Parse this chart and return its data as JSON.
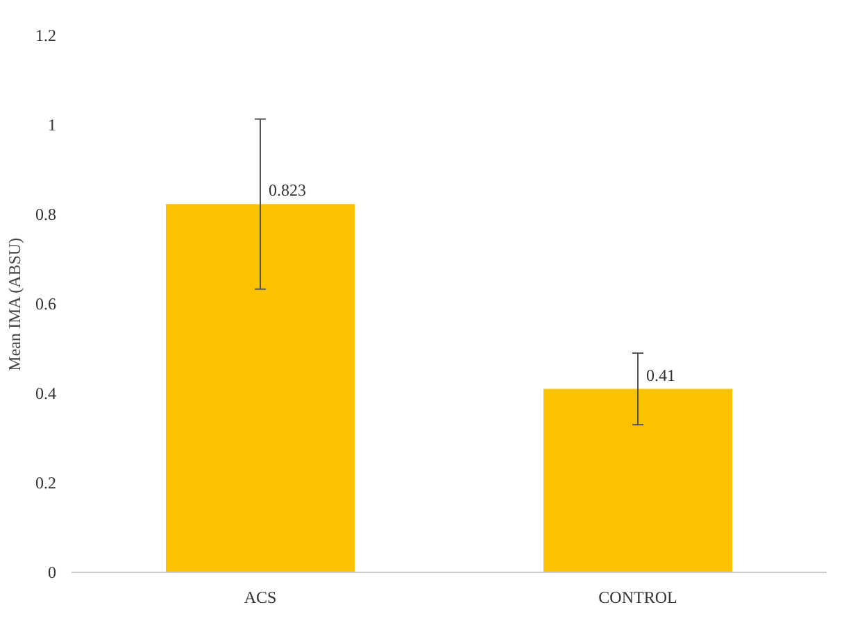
{
  "chart_data": {
    "type": "bar",
    "ylabel": "Mean IMA (ABSU)",
    "categories": [
      "ACS",
      "CONTROL"
    ],
    "values": [
      0.823,
      0.41
    ],
    "errors": [
      0.19,
      0.08
    ],
    "color": "#fbc202",
    "data_labels": true,
    "ylim": [
      0,
      1.2
    ],
    "yticks": [
      0,
      {
        "value": 0.2,
        "label": "0.2"
      },
      {
        "value": 0.4,
        "label": "0.4"
      },
      {
        "value": 0.6,
        "label": "0.6"
      },
      {
        "value": 0.8,
        "label": "0.8"
      },
      1,
      {
        "value": 1.2,
        "label": "1.2"
      }
    ],
    "grid": false
  }
}
